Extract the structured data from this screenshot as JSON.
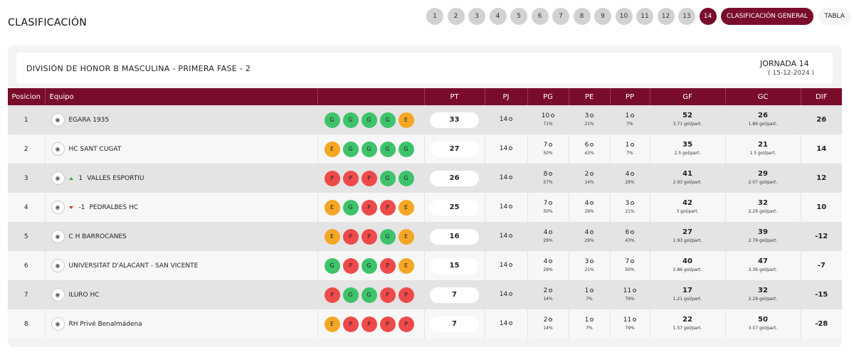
{
  "page_title": "CLASIFICACIÓN",
  "pager": {
    "rounds": [
      "1",
      "2",
      "3",
      "4",
      "5",
      "6",
      "7",
      "8",
      "9",
      "10",
      "11",
      "12",
      "13",
      "14"
    ],
    "active": "14",
    "general_label": "CLASIFICACIÓN GENERAL",
    "tabla_label": "TABLA"
  },
  "division": "DIVISIÓN DE HONOR B MASCULINA - PRIMERA FASE - 2",
  "jornada_label": "JORNADA 14",
  "jornada_date": "( 15-12-2024 )",
  "columns": {
    "pos": "Posicion",
    "team": "Equipo",
    "form": "",
    "pt": "PT",
    "pj": "PJ",
    "pg": "PG",
    "pe": "PE",
    "pp": "PP",
    "gf": "GF",
    "gc": "GC",
    "dif": "DIF"
  },
  "rows": [
    {
      "pos": "1",
      "name": "EGARA 1935",
      "move": "",
      "form": [
        "G",
        "G",
        "G",
        "G",
        "E"
      ],
      "pt": "33",
      "pj": "14",
      "pg": "10",
      "pg_pct": "71%",
      "pe": "3",
      "pe_pct": "21%",
      "pp": "1",
      "pp_pct": "7%",
      "gf": "52",
      "gf_avg": "3.71 gol/part.",
      "gc": "26",
      "gc_avg": "1.86 gol/part.",
      "dif": "26"
    },
    {
      "pos": "2",
      "name": "HC SANT CUGAT",
      "move": "",
      "form": [
        "E",
        "G",
        "G",
        "G",
        "G"
      ],
      "pt": "27",
      "pj": "14",
      "pg": "7",
      "pg_pct": "50%",
      "pe": "6",
      "pe_pct": "43%",
      "pp": "1",
      "pp_pct": "7%",
      "gf": "35",
      "gf_avg": "2.5 gol/part.",
      "gc": "21",
      "gc_avg": "1.5 gol/part.",
      "dif": "14"
    },
    {
      "pos": "3",
      "name": "VALLES ESPORTIU",
      "move": "1",
      "dir": "up",
      "form": [
        "P",
        "P",
        "P",
        "G",
        "G"
      ],
      "pt": "26",
      "pj": "14",
      "pg": "8",
      "pg_pct": "57%",
      "pe": "2",
      "pe_pct": "14%",
      "pp": "4",
      "pp_pct": "29%",
      "gf": "41",
      "gf_avg": "2.93 gol/part.",
      "gc": "29",
      "gc_avg": "2.07 gol/part.",
      "dif": "12"
    },
    {
      "pos": "4",
      "name": "PEDRALBES HC",
      "move": "-1",
      "dir": "down",
      "form": [
        "E",
        "G",
        "P",
        "P",
        "E"
      ],
      "pt": "25",
      "pj": "14",
      "pg": "7",
      "pg_pct": "50%",
      "pe": "4",
      "pe_pct": "29%",
      "pp": "3",
      "pp_pct": "21%",
      "gf": "42",
      "gf_avg": "3 gol/part.",
      "gc": "32",
      "gc_avg": "2.29 gol/part.",
      "dif": "10"
    },
    {
      "pos": "5",
      "name": "C H BARROCANES",
      "move": "",
      "form": [
        "E",
        "P",
        "P",
        "G",
        "E"
      ],
      "pt": "16",
      "pj": "14",
      "pg": "4",
      "pg_pct": "29%",
      "pe": "4",
      "pe_pct": "29%",
      "pp": "6",
      "pp_pct": "43%",
      "gf": "27",
      "gf_avg": "1.93 gol/part.",
      "gc": "39",
      "gc_avg": "2.79 gol/part.",
      "dif": "-12"
    },
    {
      "pos": "6",
      "name": "UNIVERSITAT D'ALACANT - SAN VICENTE",
      "move": "",
      "form": [
        "G",
        "P",
        "G",
        "P",
        "E"
      ],
      "pt": "15",
      "pj": "14",
      "pg": "4",
      "pg_pct": "29%",
      "pe": "3",
      "pe_pct": "21%",
      "pp": "7",
      "pp_pct": "50%",
      "gf": "40",
      "gf_avg": "2.86 gol/part.",
      "gc": "47",
      "gc_avg": "3.36 gol/part.",
      "dif": "-7"
    },
    {
      "pos": "7",
      "name": "ILURO HC",
      "move": "",
      "form": [
        "P",
        "G",
        "G",
        "P",
        "P"
      ],
      "pt": "7",
      "pj": "14",
      "pg": "2",
      "pg_pct": "14%",
      "pe": "1",
      "pe_pct": "7%",
      "pp": "11",
      "pp_pct": "79%",
      "gf": "17",
      "gf_avg": "1.21 gol/part.",
      "gc": "32",
      "gc_avg": "2.29 gol/part.",
      "dif": "-15"
    },
    {
      "pos": "8",
      "name": "RH Privé Benalmádena",
      "move": "",
      "form": [
        "E",
        "P",
        "P",
        "P",
        "P"
      ],
      "pt": "7",
      "pj": "14",
      "pg": "2",
      "pg_pct": "14%",
      "pe": "1",
      "pe_pct": "7%",
      "pp": "11",
      "pp_pct": "79%",
      "gf": "22",
      "gf_avg": "1.57 gol/part.",
      "gc": "50",
      "gc_avg": "3.57 gol/part.",
      "dif": "-28"
    }
  ],
  "colors": {
    "accent": "#7a0c2b",
    "win": "#3ec36a",
    "draw": "#f5a623",
    "loss": "#ee4a4a"
  }
}
